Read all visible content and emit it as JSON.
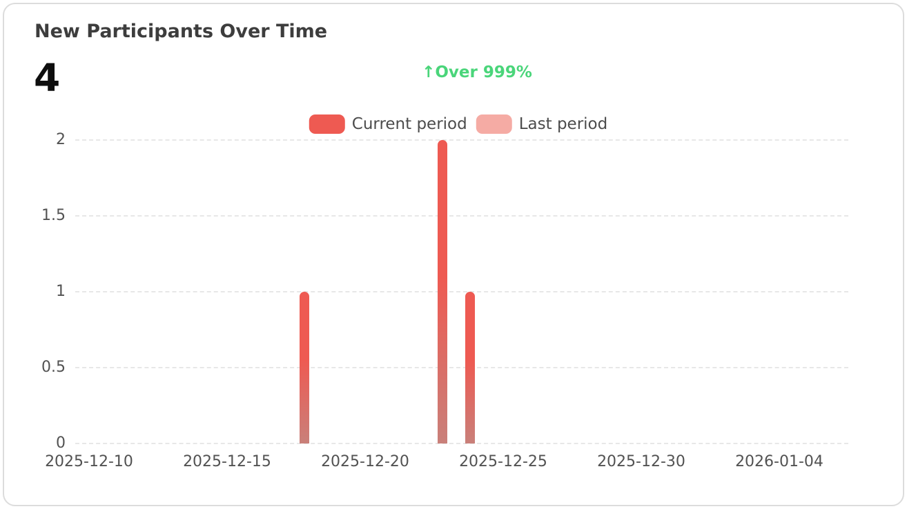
{
  "chart_data": {
    "type": "bar",
    "title": "New Participants Over Time",
    "summary_value": "4",
    "change_badge": {
      "arrow": "↑",
      "label": "Over 999%",
      "color": "#4ad57a"
    },
    "legend": {
      "position": "top-center",
      "entries": [
        {
          "label": "Current period",
          "color": "#ee5a52"
        },
        {
          "label": "Last period",
          "color": "#f5aba4"
        }
      ]
    },
    "x": {
      "type": "date-category",
      "start": "2025-12-10",
      "end": "2026-01-06",
      "tick_labels": [
        "2025-12-10",
        "2025-12-15",
        "2025-12-20",
        "2025-12-25",
        "2025-12-30",
        "2026-01-04"
      ],
      "tick_day_offsets": [
        0,
        5,
        10,
        15,
        20,
        25
      ]
    },
    "y": {
      "min": 0,
      "max": 2,
      "ticks": [
        0,
        0.5,
        1,
        1.5,
        2
      ],
      "tick_labels": [
        "0",
        "0.5",
        "1",
        "1.5",
        "2"
      ]
    },
    "grid": {
      "horizontal": true,
      "style": "dashed",
      "color": "#e7e7e7"
    },
    "series": [
      {
        "name": "Current period",
        "color": "#ee5a52",
        "fade_color": "#c9807a",
        "points": [
          {
            "date": "2025-12-18",
            "day_offset": 8,
            "value": 1
          },
          {
            "date": "2025-12-23",
            "day_offset": 13,
            "value": 2
          },
          {
            "date": "2025-12-24",
            "day_offset": 14,
            "value": 1
          }
        ]
      },
      {
        "name": "Last period",
        "color": "#f5aba4",
        "fade_color": "#f5aba4",
        "points": []
      }
    ]
  }
}
